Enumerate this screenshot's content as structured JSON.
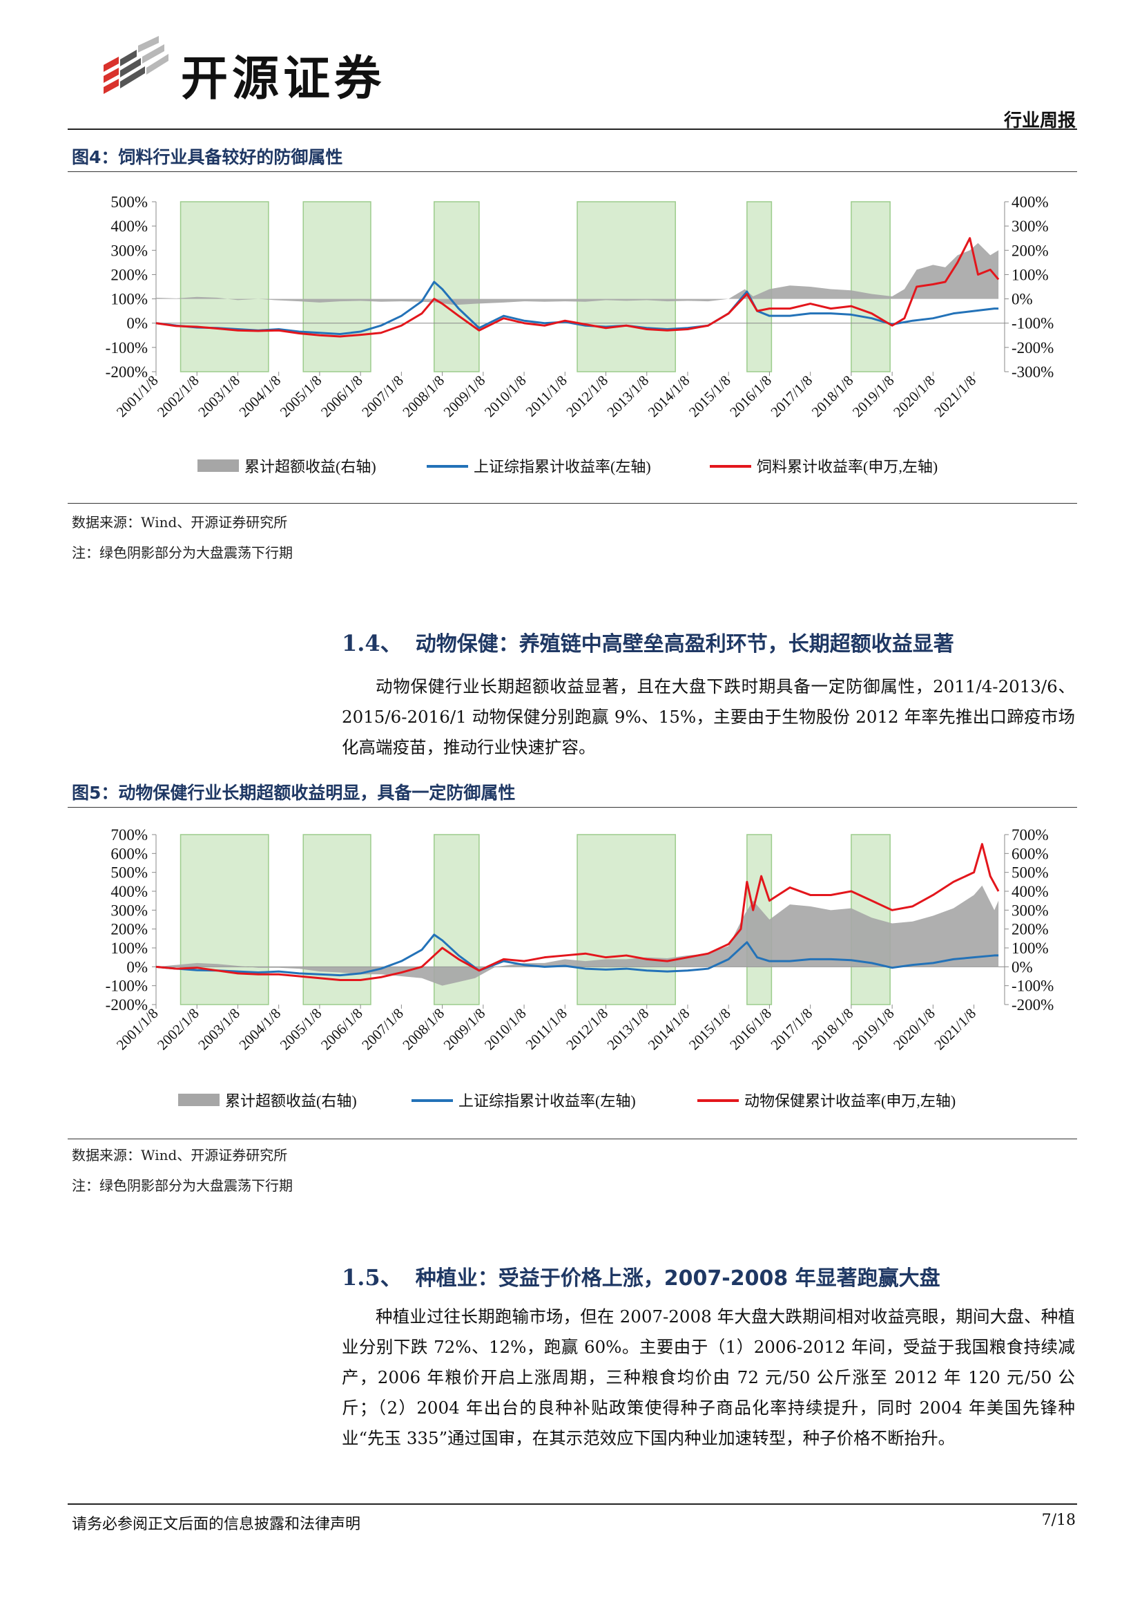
{
  "header": {
    "brand": "开源证券",
    "report_type": "行业周报"
  },
  "figure4": {
    "title": "图4：饲料行业具备较好的防御属性",
    "source": "数据来源：Wind、开源证券研究所",
    "note": "注：绿色阴影部分为大盘震荡下行期"
  },
  "section14": {
    "number": "1.4、",
    "title": "动物保健：养殖链中高壁垒高盈利环节，长期超额收益显著",
    "paragraph": "动物保健行业长期超额收益显著，且在大盘下跌时期具备一定防御属性，2011/4-2013/6、2015/6-2016/1 动物保健分别跑赢 9%、15%，主要由于生物股份 2012 年率先推出口蹄疫市场化高端疫苗，推动行业快速扩容。"
  },
  "figure5": {
    "title": "图5：动物保健行业长期超额收益明显，具备一定防御属性",
    "source": "数据来源：Wind、开源证券研究所",
    "note": "注：绿色阴影部分为大盘震荡下行期"
  },
  "section15": {
    "number": "1.5、",
    "title": "种植业：受益于价格上涨，2007-2008 年显著跑赢大盘",
    "paragraph": "种植业过往长期跑输市场，但在 2007-2008 年大盘大跌期间相对收益亮眼，期间大盘、种植业分别下跌 72%、12%，跑赢 60%。主要由于（1）2006-2012 年间，受益于我国粮食持续减产，2006 年粮价开启上涨周期，三种粮食均价由 72 元/50 公斤涨至 2012 年 120 元/50 公斤；（2）2004 年出台的良种补贴政策使得种子商品化率持续提升，同时 2004 年美国先锋种业“先玉 335”通过国审，在其示范效应下国内种业加速转型，种子价格不断抬升。"
  },
  "footer": {
    "disclaimer": "请务必参阅正文后面的信息披露和法律声明",
    "page": "7/18"
  },
  "chart_data": [
    {
      "type": "line",
      "x_ticks": [
        "2001/1/8",
        "2002/1/8",
        "2003/1/8",
        "2004/1/8",
        "2005/1/8",
        "2006/1/8",
        "2007/1/8",
        "2008/1/8",
        "2009/1/8",
        "2010/1/8",
        "2011/1/8",
        "2012/1/8",
        "2013/1/8",
        "2014/1/8",
        "2015/1/8",
        "2016/1/8",
        "2017/1/8",
        "2018/1/8",
        "2019/1/8",
        "2020/1/8",
        "2021/1/8"
      ],
      "y_left_ticks": [
        "500%",
        "400%",
        "300%",
        "200%",
        "100%",
        "0%",
        "-100%",
        "-200%"
      ],
      "y_right_ticks": [
        "400%",
        "300%",
        "200%",
        "100%",
        "0%",
        "-100%",
        "-200%",
        "-300%"
      ],
      "ylim_left": [
        -200,
        500
      ],
      "ylim_right": [
        -300,
        400
      ],
      "shaded_periods": [
        [
          2001.6,
          2003.75
        ],
        [
          2004.6,
          2006.25
        ],
        [
          2007.8,
          2008.9
        ],
        [
          2011.3,
          2013.7
        ],
        [
          2015.45,
          2016.05
        ],
        [
          2018.0,
          2018.95
        ]
      ],
      "legend": [
        "累计超额收益(右轴)",
        "上证综指累计收益率(左轴)",
        "饲料累计收益率(申万,左轴)"
      ],
      "colors": {
        "excess": "#a6a6a6",
        "index": "#2372b8",
        "sector": "#e3161c",
        "shade": "#d8ecd0",
        "shade_border": "#9ccc8c"
      },
      "series": [
        {
          "name": "累计超额收益(右轴)",
          "axis": "right",
          "x": [
            2001.0,
            2001.5,
            2002.0,
            2002.5,
            2003.0,
            2003.5,
            2003.9,
            2004.5,
            2005.0,
            2005.5,
            2006.0,
            2006.5,
            2007.0,
            2007.5,
            2007.85,
            2008.3,
            2008.8,
            2009.5,
            2010.0,
            2010.5,
            2011.0,
            2011.5,
            2012.0,
            2012.5,
            2013.0,
            2013.5,
            2014.0,
            2014.5,
            2015.0,
            2015.4,
            2015.6,
            2016.0,
            2016.5,
            2017.0,
            2017.5,
            2018.0,
            2018.5,
            2019.0,
            2019.3,
            2019.6,
            2020.0,
            2020.3,
            2020.6,
            2020.9,
            2021.1,
            2021.4,
            2021.6
          ],
          "values": [
            5,
            2,
            8,
            5,
            -5,
            0,
            -5,
            -10,
            -15,
            -10,
            -8,
            -12,
            -10,
            -12,
            -15,
            -25,
            -20,
            -15,
            -10,
            -12,
            -10,
            -12,
            -5,
            -8,
            -5,
            -10,
            -8,
            -10,
            0,
            40,
            10,
            40,
            55,
            50,
            40,
            35,
            20,
            10,
            40,
            120,
            140,
            130,
            180,
            200,
            230,
            180,
            200
          ]
        },
        {
          "name": "上证综指累计收益率(左轴)",
          "axis": "left",
          "x": [
            2001.0,
            2001.5,
            2002.0,
            2002.5,
            2003.0,
            2003.5,
            2004.0,
            2004.5,
            2005.0,
            2005.5,
            2006.0,
            2006.5,
            2007.0,
            2007.5,
            2007.8,
            2008.0,
            2008.4,
            2008.9,
            2009.5,
            2010.0,
            2010.5,
            2011.0,
            2011.5,
            2012.0,
            2012.5,
            2013.0,
            2013.5,
            2014.0,
            2014.5,
            2015.0,
            2015.45,
            2015.7,
            2016.0,
            2016.5,
            2017.0,
            2017.5,
            2018.0,
            2018.5,
            2019.0,
            2019.5,
            2020.0,
            2020.5,
            2021.0,
            2021.5,
            2021.6
          ],
          "values": [
            0,
            -10,
            -18,
            -20,
            -25,
            -30,
            -25,
            -35,
            -40,
            -45,
            -35,
            -10,
            30,
            90,
            170,
            140,
            60,
            -20,
            30,
            10,
            0,
            5,
            -10,
            -15,
            -10,
            -20,
            -25,
            -20,
            -10,
            40,
            130,
            50,
            30,
            30,
            40,
            40,
            35,
            20,
            -5,
            10,
            20,
            40,
            50,
            60,
            60
          ]
        },
        {
          "name": "饲料累计收益率(申万,左轴)",
          "axis": "left",
          "x": [
            2001.0,
            2001.5,
            2002.0,
            2002.5,
            2003.0,
            2003.5,
            2004.0,
            2004.5,
            2005.0,
            2005.5,
            2006.0,
            2006.5,
            2007.0,
            2007.5,
            2007.8,
            2008.0,
            2008.4,
            2008.9,
            2009.5,
            2010.0,
            2010.5,
            2011.0,
            2011.5,
            2012.0,
            2012.5,
            2013.0,
            2013.5,
            2014.0,
            2014.5,
            2015.0,
            2015.45,
            2015.7,
            2016.0,
            2016.5,
            2017.0,
            2017.5,
            2018.0,
            2018.5,
            2019.0,
            2019.3,
            2019.6,
            2020.0,
            2020.3,
            2020.6,
            2020.9,
            2021.1,
            2021.4,
            2021.6
          ],
          "values": [
            0,
            -12,
            -15,
            -22,
            -30,
            -32,
            -30,
            -42,
            -50,
            -55,
            -48,
            -40,
            -10,
            40,
            100,
            80,
            30,
            -30,
            20,
            0,
            -10,
            10,
            -5,
            -20,
            -10,
            -25,
            -30,
            -25,
            -10,
            40,
            120,
            50,
            60,
            60,
            80,
            60,
            70,
            40,
            -10,
            20,
            150,
            160,
            170,
            250,
            350,
            200,
            220,
            180
          ]
        }
      ]
    },
    {
      "type": "line",
      "x_ticks": [
        "2001/1/8",
        "2002/1/8",
        "2003/1/8",
        "2004/1/8",
        "2005/1/8",
        "2006/1/8",
        "2007/1/8",
        "2008/1/8",
        "2009/1/8",
        "2010/1/8",
        "2011/1/8",
        "2012/1/8",
        "2013/1/8",
        "2014/1/8",
        "2015/1/8",
        "2016/1/8",
        "2017/1/8",
        "2018/1/8",
        "2019/1/8",
        "2020/1/8",
        "2021/1/8"
      ],
      "y_left_ticks": [
        "700%",
        "600%",
        "500%",
        "400%",
        "300%",
        "200%",
        "100%",
        "0%",
        "-100%",
        "-200%"
      ],
      "y_right_ticks": [
        "700%",
        "600%",
        "500%",
        "400%",
        "300%",
        "200%",
        "100%",
        "0%",
        "-100%",
        "-200%"
      ],
      "ylim_left": [
        -200,
        700
      ],
      "ylim_right": [
        -200,
        700
      ],
      "shaded_periods": [
        [
          2001.6,
          2003.75
        ],
        [
          2004.6,
          2006.25
        ],
        [
          2007.8,
          2008.9
        ],
        [
          2011.3,
          2013.7
        ],
        [
          2015.45,
          2016.05
        ],
        [
          2018.0,
          2018.95
        ]
      ],
      "legend": [
        "累计超额收益(右轴)",
        "上证综指累计收益率(左轴)",
        "动物保健累计收益率(申万,左轴)"
      ],
      "colors": {
        "excess": "#a6a6a6",
        "index": "#2372b8",
        "sector": "#e3161c",
        "shade": "#d8ecd0",
        "shade_border": "#9ccc8c"
      },
      "series": [
        {
          "name": "累计超额收益(右轴)",
          "axis": "right",
          "x": [
            2001.0,
            2001.5,
            2002.0,
            2002.5,
            2003.0,
            2003.5,
            2004.0,
            2004.5,
            2005.0,
            2005.5,
            2006.0,
            2006.5,
            2007.0,
            2007.5,
            2008.0,
            2008.4,
            2008.8,
            2009.3,
            2010.0,
            2010.5,
            2011.0,
            2011.5,
            2012.0,
            2012.5,
            2013.0,
            2013.5,
            2014.0,
            2014.5,
            2015.0,
            2015.4,
            2015.6,
            2016.0,
            2016.5,
            2017.0,
            2017.5,
            2018.0,
            2018.5,
            2019.0,
            2019.5,
            2020.0,
            2020.5,
            2021.0,
            2021.2,
            2021.5,
            2021.6
          ],
          "values": [
            0,
            10,
            20,
            15,
            5,
            -5,
            -5,
            -10,
            -25,
            -30,
            -40,
            -40,
            -50,
            -60,
            -100,
            -80,
            -60,
            0,
            20,
            20,
            40,
            30,
            40,
            40,
            50,
            45,
            60,
            70,
            110,
            280,
            350,
            250,
            330,
            320,
            300,
            310,
            260,
            230,
            240,
            270,
            310,
            380,
            430,
            300,
            350
          ]
        },
        {
          "name": "上证综指累计收益率(左轴)",
          "axis": "left",
          "x": [
            2001.0,
            2001.5,
            2002.0,
            2002.5,
            2003.0,
            2003.5,
            2004.0,
            2004.5,
            2005.0,
            2005.5,
            2006.0,
            2006.5,
            2007.0,
            2007.5,
            2007.8,
            2008.0,
            2008.4,
            2008.9,
            2009.5,
            2010.0,
            2010.5,
            2011.0,
            2011.5,
            2012.0,
            2012.5,
            2013.0,
            2013.5,
            2014.0,
            2014.5,
            2015.0,
            2015.45,
            2015.7,
            2016.0,
            2016.5,
            2017.0,
            2017.5,
            2018.0,
            2018.5,
            2019.0,
            2019.5,
            2020.0,
            2020.5,
            2021.0,
            2021.5,
            2021.6
          ],
          "values": [
            0,
            -10,
            -18,
            -20,
            -25,
            -30,
            -25,
            -35,
            -40,
            -45,
            -35,
            -10,
            30,
            90,
            170,
            140,
            60,
            -20,
            30,
            10,
            0,
            5,
            -10,
            -15,
            -10,
            -20,
            -25,
            -20,
            -10,
            40,
            130,
            50,
            30,
            30,
            40,
            40,
            35,
            20,
            -5,
            10,
            20,
            40,
            50,
            60,
            60
          ]
        },
        {
          "name": "动物保健累计收益率(申万,左轴)",
          "axis": "left",
          "x": [
            2001.0,
            2001.5,
            2002.0,
            2002.5,
            2003.0,
            2003.5,
            2004.0,
            2004.5,
            2005.0,
            2005.5,
            2006.0,
            2006.5,
            2007.0,
            2007.5,
            2007.8,
            2008.0,
            2008.4,
            2008.9,
            2009.5,
            2010.0,
            2010.5,
            2011.0,
            2011.5,
            2012.0,
            2012.5,
            2013.0,
            2013.5,
            2014.0,
            2014.5,
            2015.0,
            2015.3,
            2015.45,
            2015.6,
            2015.8,
            2016.0,
            2016.5,
            2017.0,
            2017.5,
            2018.0,
            2018.5,
            2019.0,
            2019.5,
            2020.0,
            2020.5,
            2021.0,
            2021.2,
            2021.4,
            2021.6
          ],
          "values": [
            0,
            -10,
            -5,
            -20,
            -35,
            -40,
            -40,
            -50,
            -60,
            -70,
            -70,
            -55,
            -30,
            0,
            60,
            100,
            40,
            -20,
            40,
            30,
            50,
            60,
            70,
            50,
            60,
            40,
            30,
            50,
            70,
            120,
            200,
            450,
            300,
            480,
            350,
            420,
            380,
            380,
            400,
            350,
            300,
            320,
            380,
            450,
            500,
            650,
            480,
            400
          ]
        }
      ]
    }
  ]
}
